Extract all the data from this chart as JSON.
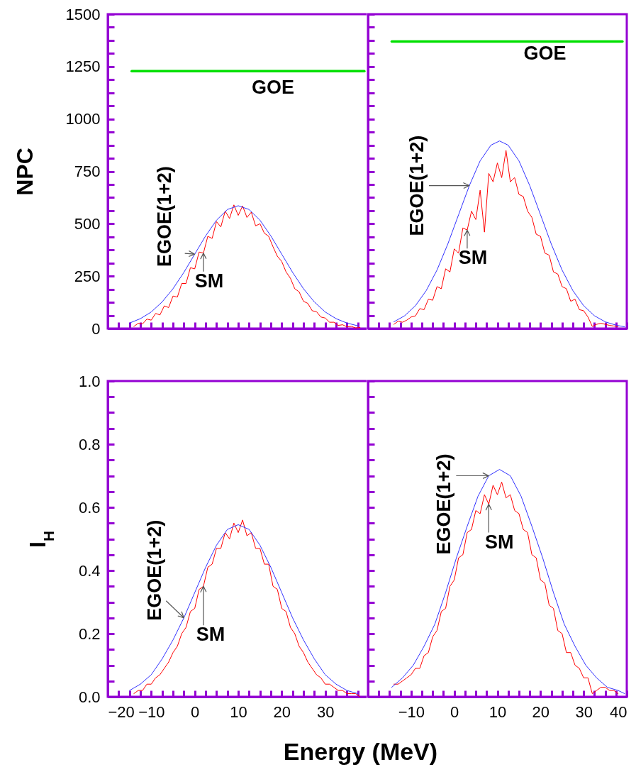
{
  "chart_data": [
    {
      "type": "line",
      "ylabel": "NPC",
      "tick_labels": "y",
      "xlim": [
        -20,
        40
      ],
      "xticks": [
        -20,
        {
          "value": -17.5,
          "label": null
        },
        {
          "value": -15,
          "label": null
        },
        {
          "value": -12.5,
          "label": null
        },
        -10,
        {
          "value": -7.5,
          "label": null
        },
        {
          "value": -5,
          "label": null
        },
        {
          "value": -2.5,
          "label": null
        },
        0,
        {
          "value": 2.5,
          "label": null
        },
        {
          "value": 5,
          "label": null
        },
        {
          "value": 7.5,
          "label": null
        },
        10,
        {
          "value": 12.5,
          "label": null
        },
        {
          "value": 15,
          "label": null
        },
        {
          "value": 17.5,
          "label": null
        },
        20,
        {
          "value": 22.5,
          "label": null
        },
        {
          "value": 25,
          "label": null
        },
        {
          "value": 27.5,
          "label": null
        },
        30,
        {
          "value": 32.5,
          "label": null
        },
        {
          "value": 35,
          "label": null
        },
        {
          "value": 37.5,
          "label": null
        },
        {
          "value": 40,
          "label": null
        }
      ],
      "ylim": [
        0,
        1500
      ],
      "yticks": [
        0,
        {
          "value": 62.5,
          "label": null
        },
        {
          "value": 125,
          "label": null
        },
        {
          "value": 187.5,
          "label": null
        },
        250,
        {
          "value": 312.5,
          "label": null
        },
        {
          "value": 375,
          "label": null
        },
        {
          "value": 437.5,
          "label": null
        },
        500,
        {
          "value": 562.5,
          "label": null
        },
        {
          "value": 625,
          "label": null
        },
        {
          "value": 687.5,
          "label": null
        },
        750,
        {
          "value": 812.5,
          "label": null
        },
        {
          "value": 875,
          "label": null
        },
        {
          "value": 937.5,
          "label": null
        },
        1000,
        {
          "value": 1062.5,
          "label": null
        },
        {
          "value": 1125,
          "label": null
        },
        {
          "value": 1187.5,
          "label": null
        },
        1250,
        {
          "value": 1312.5,
          "label": null
        },
        {
          "value": 1375,
          "label": null
        },
        {
          "value": 1437.5,
          "label": null
        },
        1500
      ],
      "series": [
        {
          "color": "#ff0000",
          "x": [
            -14,
            -13,
            -12,
            -11,
            -10,
            -9,
            -8,
            -7,
            -6,
            -5,
            -4,
            -3,
            -2,
            -1,
            0,
            1,
            2,
            3,
            4,
            5,
            6,
            7,
            8,
            9,
            10,
            11,
            12,
            13,
            14,
            15,
            16,
            17,
            18,
            19,
            20,
            21,
            22,
            23,
            24,
            25,
            26,
            27,
            28,
            29,
            30,
            31,
            32,
            33,
            34,
            35,
            36,
            37,
            38
          ],
          "values": [
            10,
            25,
            22,
            45,
            40,
            72,
            65,
            108,
            100,
            155,
            150,
            215,
            215,
            290,
            285,
            365,
            360,
            440,
            430,
            510,
            485,
            560,
            525,
            590,
            540,
            585,
            530,
            555,
            490,
            500,
            455,
            440,
            390,
            345,
            320,
            270,
            240,
            190,
            175,
            130,
            120,
            85,
            80,
            55,
            50,
            30,
            30,
            15,
            18,
            8,
            10,
            3,
            5
          ]
        },
        {
          "color": "#3333ff",
          "x": [
            -15,
            -12.5,
            -10,
            -7.5,
            -5,
            -2.5,
            0,
            2.5,
            5,
            7.5,
            10,
            12.5,
            15,
            17.5,
            20,
            22.5,
            25,
            27.5,
            30,
            32.5,
            35,
            37.5
          ],
          "values": [
            26,
            47,
            79,
            127,
            190,
            268,
            355,
            442,
            517,
            568,
            586,
            568,
            517,
            442,
            355,
            268,
            190,
            127,
            79,
            47,
            26,
            13
          ]
        },
        {
          "color": "#00e000",
          "x": [
            -14.5,
            39
          ],
          "values": [
            1228,
            1228
          ]
        }
      ],
      "annotations": [
        {
          "text": "EGOE(1+2)",
          "x": 0,
          "y": 355
        },
        {
          "text": "SM",
          "x": 2,
          "y": 360
        },
        {
          "text": "GOE",
          "x": 18,
          "y": 1228
        }
      ]
    },
    {
      "type": "line",
      "tick_labels": false,
      "xlim": [
        -20,
        40
      ],
      "xticks": [
        {
          "value": -20,
          "label": null
        },
        {
          "value": -17.5,
          "label": null
        },
        {
          "value": -15,
          "label": null
        },
        {
          "value": -12.5,
          "label": null
        },
        -10,
        {
          "value": -7.5,
          "label": null
        },
        {
          "value": -5,
          "label": null
        },
        {
          "value": -2.5,
          "label": null
        },
        0,
        {
          "value": 2.5,
          "label": null
        },
        {
          "value": 5,
          "label": null
        },
        {
          "value": 7.5,
          "label": null
        },
        10,
        {
          "value": 12.5,
          "label": null
        },
        {
          "value": 15,
          "label": null
        },
        {
          "value": 17.5,
          "label": null
        },
        20,
        {
          "value": 22.5,
          "label": null
        },
        {
          "value": 25,
          "label": null
        },
        {
          "value": 27.5,
          "label": null
        },
        30,
        {
          "value": 32.5,
          "label": null
        },
        {
          "value": 35,
          "label": null
        },
        {
          "value": 37.5,
          "label": null
        },
        40
      ],
      "ylim": [
        0,
        1500
      ],
      "yticks": [
        0,
        {
          "value": 62.5,
          "label": null
        },
        {
          "value": 125,
          "label": null
        },
        {
          "value": 187.5,
          "label": null
        },
        250,
        {
          "value": 312.5,
          "label": null
        },
        {
          "value": 375,
          "label": null
        },
        {
          "value": 437.5,
          "label": null
        },
        500,
        {
          "value": 562.5,
          "label": null
        },
        {
          "value": 625,
          "label": null
        },
        {
          "value": 687.5,
          "label": null
        },
        750,
        {
          "value": 812.5,
          "label": null
        },
        {
          "value": 875,
          "label": null
        },
        {
          "value": 937.5,
          "label": null
        },
        1000,
        {
          "value": 1062.5,
          "label": null
        },
        {
          "value": 1125,
          "label": null
        },
        {
          "value": 1187.5,
          "label": null
        },
        1250,
        {
          "value": 1312.5,
          "label": null
        },
        {
          "value": 1375,
          "label": null
        },
        {
          "value": 1437.5,
          "label": null
        },
        1500
      ],
      "series": [
        {
          "color": "#ff0000",
          "x": [
            -14,
            -13,
            -12,
            -11,
            -10,
            -9,
            -8,
            -7,
            -6,
            -5,
            -4,
            -3,
            -2,
            -1,
            0,
            1,
            2,
            3,
            4,
            5,
            6,
            7,
            8,
            9,
            10,
            11,
            12,
            13,
            14,
            15,
            16,
            17,
            18,
            19,
            20,
            21,
            22,
            23,
            24,
            25,
            26,
            27,
            28,
            29,
            30,
            31,
            32,
            33,
            34,
            35,
            36,
            37,
            38
          ],
          "values": [
            20,
            35,
            30,
            40,
            55,
            60,
            95,
            90,
            140,
            135,
            200,
            190,
            285,
            270,
            380,
            360,
            480,
            470,
            560,
            520,
            660,
            460,
            740,
            700,
            790,
            720,
            850,
            700,
            720,
            640,
            630,
            560,
            530,
            450,
            440,
            360,
            350,
            270,
            260,
            200,
            190,
            130,
            140,
            90,
            85,
            55,
            10,
            20,
            25,
            20,
            15,
            12,
            10
          ]
        },
        {
          "color": "#3333ff",
          "x": [
            -14,
            -11.5,
            -9,
            -6.5,
            -4,
            -1.5,
            1,
            3.5,
            6,
            8.5,
            10.5,
            12.5,
            15,
            17.5,
            20,
            22.5,
            25,
            27.5,
            30,
            32.5,
            35,
            37.5,
            39.5
          ],
          "values": [
            32,
            61,
            109,
            181,
            279,
            403,
            543,
            682,
            800,
            875,
            895,
            875,
            800,
            682,
            543,
            403,
            279,
            181,
            109,
            61,
            32,
            16,
            8
          ]
        },
        {
          "color": "#00e000",
          "x": [
            -14.5,
            39
          ],
          "values": [
            1370,
            1370
          ]
        }
      ],
      "annotations": [
        {
          "text": "EGOE(1+2)",
          "x": 3.5,
          "y": 682
        },
        {
          "text": "SM",
          "x": 3,
          "y": 470
        },
        {
          "text": "GOE",
          "x": 21,
          "y": 1370
        }
      ]
    },
    {
      "type": "line",
      "ylabel": "I$_{H}$",
      "xlabel": "Energy (MeV)",
      "xlim": [
        -20,
        40
      ],
      "xticks": [
        -20,
        {
          "value": -17.5,
          "label": null
        },
        {
          "value": -15,
          "label": null
        },
        {
          "value": -12.5,
          "label": null
        },
        -10,
        {
          "value": -7.5,
          "label": null
        },
        {
          "value": -5,
          "label": null
        },
        {
          "value": -2.5,
          "label": null
        },
        0,
        {
          "value": 2.5,
          "label": null
        },
        {
          "value": 5,
          "label": null
        },
        {
          "value": 7.5,
          "label": null
        },
        10,
        {
          "value": 12.5,
          "label": null
        },
        {
          "value": 15,
          "label": null
        },
        {
          "value": 17.5,
          "label": null
        },
        20,
        {
          "value": 22.5,
          "label": null
        },
        {
          "value": 25,
          "label": null
        },
        {
          "value": 27.5,
          "label": null
        },
        30,
        {
          "value": 32.5,
          "label": null
        },
        {
          "value": 35,
          "label": null
        },
        {
          "value": 37.5,
          "label": null
        },
        {
          "value": 40,
          "label": null
        }
      ],
      "ylim": [
        0,
        1
      ],
      "yticks": [
        {
          "value": 0,
          "label": "0.0"
        },
        {
          "value": 0.05,
          "label": null
        },
        {
          "value": 0.1,
          "label": null
        },
        {
          "value": 0.15,
          "label": null
        },
        0.2,
        {
          "value": 0.25,
          "label": null
        },
        {
          "value": 0.3,
          "label": null
        },
        {
          "value": 0.35,
          "label": null
        },
        0.4,
        {
          "value": 0.45,
          "label": null
        },
        {
          "value": 0.5,
          "label": null
        },
        {
          "value": 0.55,
          "label": null
        },
        0.6,
        {
          "value": 0.65,
          "label": null
        },
        {
          "value": 0.7,
          "label": null
        },
        {
          "value": 0.75,
          "label": null
        },
        0.8,
        {
          "value": 0.85,
          "label": null
        },
        {
          "value": 0.9,
          "label": null
        },
        {
          "value": 0.95,
          "label": null
        },
        {
          "value": 1,
          "label": "1.0"
        }
      ],
      "series": [
        {
          "color": "#ff0000",
          "x": [
            -14,
            -13,
            -12,
            -11,
            -10,
            -9,
            -8,
            -7,
            -6,
            -5,
            -4,
            -3,
            -2,
            -1,
            0,
            1,
            2,
            3,
            4,
            5,
            6,
            7,
            8,
            9,
            10,
            11,
            12,
            13,
            14,
            15,
            16,
            17,
            18,
            19,
            20,
            21,
            22,
            23,
            24,
            25,
            26,
            27,
            28,
            29,
            30,
            31,
            32,
            33,
            34,
            35,
            36,
            37,
            38
          ],
          "values": [
            0.01,
            0.02,
            0.02,
            0.04,
            0.04,
            0.06,
            0.07,
            0.09,
            0.11,
            0.14,
            0.16,
            0.2,
            0.22,
            0.27,
            0.28,
            0.34,
            0.35,
            0.41,
            0.42,
            0.47,
            0.47,
            0.52,
            0.5,
            0.55,
            0.52,
            0.56,
            0.51,
            0.52,
            0.47,
            0.47,
            0.42,
            0.42,
            0.35,
            0.34,
            0.28,
            0.27,
            0.22,
            0.2,
            0.16,
            0.14,
            0.11,
            0.09,
            0.07,
            0.06,
            0.04,
            0.04,
            0.03,
            0.02,
            0.02,
            0.01,
            0.01,
            0.01,
            0
          ]
        },
        {
          "color": "#3333ff",
          "x": [
            -15,
            -12.5,
            -10,
            -7.5,
            -5,
            -2.5,
            0,
            2.5,
            5,
            7.5,
            10,
            12.5,
            15,
            17.5,
            20,
            22.5,
            25,
            27.5,
            30,
            32.5,
            35,
            37.5
          ],
          "values": [
            0.02,
            0.04,
            0.07,
            0.12,
            0.18,
            0.25,
            0.33,
            0.41,
            0.48,
            0.53,
            0.545,
            0.53,
            0.48,
            0.41,
            0.33,
            0.25,
            0.18,
            0.12,
            0.07,
            0.04,
            0.02,
            0.01
          ]
        }
      ],
      "annotations": [
        {
          "text": "EGOE(1+2)",
          "x": -2.5,
          "y": 0.25
        },
        {
          "text": "SM",
          "x": 2,
          "y": 0.35
        }
      ]
    },
    {
      "type": "line",
      "tick_labels": "x",
      "xlim": [
        -20,
        40
      ],
      "xticks": [
        {
          "value": -20,
          "label": null
        },
        {
          "value": -17.5,
          "label": null
        },
        {
          "value": -15,
          "label": null
        },
        {
          "value": -12.5,
          "label": null
        },
        -10,
        {
          "value": -7.5,
          "label": null
        },
        {
          "value": -5,
          "label": null
        },
        {
          "value": -2.5,
          "label": null
        },
        0,
        {
          "value": 2.5,
          "label": null
        },
        {
          "value": 5,
          "label": null
        },
        {
          "value": 7.5,
          "label": null
        },
        10,
        {
          "value": 12.5,
          "label": null
        },
        {
          "value": 15,
          "label": null
        },
        {
          "value": 17.5,
          "label": null
        },
        20,
        {
          "value": 22.5,
          "label": null
        },
        {
          "value": 25,
          "label": null
        },
        {
          "value": 27.5,
          "label": null
        },
        30,
        {
          "value": 32.5,
          "label": null
        },
        {
          "value": 35,
          "label": null
        },
        {
          "value": 37.5,
          "label": null
        },
        40
      ],
      "ylim": [
        0,
        1
      ],
      "yticks": [
        0,
        {
          "value": 0.05,
          "label": null
        },
        {
          "value": 0.1,
          "label": null
        },
        {
          "value": 0.15,
          "label": null
        },
        0.2,
        {
          "value": 0.25,
          "label": null
        },
        {
          "value": 0.3,
          "label": null
        },
        {
          "value": 0.35,
          "label": null
        },
        0.4,
        {
          "value": 0.45,
          "label": null
        },
        {
          "value": 0.5,
          "label": null
        },
        {
          "value": 0.55,
          "label": null
        },
        0.6,
        {
          "value": 0.65,
          "label": null
        },
        {
          "value": 0.7,
          "label": null
        },
        {
          "value": 0.75,
          "label": null
        },
        0.8,
        {
          "value": 0.85,
          "label": null
        },
        {
          "value": 0.9,
          "label": null
        },
        {
          "value": 0.95,
          "label": null
        },
        1
      ],
      "series": [
        {
          "color": "#ff0000",
          "x": [
            -14,
            -13,
            -12,
            -11,
            -10,
            -9,
            -8,
            -7,
            -6,
            -5,
            -4,
            -3,
            -2,
            -1,
            0,
            1,
            2,
            3,
            4,
            5,
            6,
            7,
            8,
            9,
            10,
            11,
            12,
            13,
            14,
            15,
            16,
            17,
            18,
            19,
            20,
            21,
            22,
            23,
            24,
            25,
            26,
            27,
            28,
            29,
            30,
            31,
            32,
            33,
            34,
            35,
            36,
            37,
            38
          ],
          "values": [
            0.04,
            0.04,
            0.05,
            0.06,
            0.07,
            0.09,
            0.09,
            0.13,
            0.14,
            0.19,
            0.21,
            0.27,
            0.28,
            0.35,
            0.37,
            0.44,
            0.45,
            0.52,
            0.53,
            0.59,
            0.58,
            0.64,
            0.61,
            0.67,
            0.64,
            0.68,
            0.63,
            0.64,
            0.59,
            0.58,
            0.53,
            0.52,
            0.45,
            0.44,
            0.37,
            0.36,
            0.29,
            0.28,
            0.21,
            0.2,
            0.14,
            0.14,
            0.1,
            0.09,
            0.06,
            0.06,
            0.01,
            0.02,
            0.03,
            0.03,
            0.02,
            0.02,
            0.01
          ]
        },
        {
          "color": "#3333ff",
          "x": [
            -14.5,
            -12,
            -9.5,
            -7,
            -4.5,
            -2,
            0.5,
            3,
            5.5,
            8,
            10.5,
            13,
            15.5,
            18,
            20.5,
            23,
            25.5,
            28,
            30.5,
            33,
            35.5,
            38,
            39.5
          ],
          "values": [
            0.03,
            0.06,
            0.1,
            0.16,
            0.23,
            0.33,
            0.44,
            0.54,
            0.635,
            0.7,
            0.72,
            0.7,
            0.635,
            0.54,
            0.44,
            0.33,
            0.23,
            0.16,
            0.1,
            0.06,
            0.03,
            0.02,
            0.01
          ]
        }
      ],
      "annotations": [
        {
          "text": "EGOE(1+2)",
          "x": 8,
          "y": 0.7
        },
        {
          "text": "SM",
          "x": 8,
          "y": 0.61
        }
      ]
    }
  ]
}
